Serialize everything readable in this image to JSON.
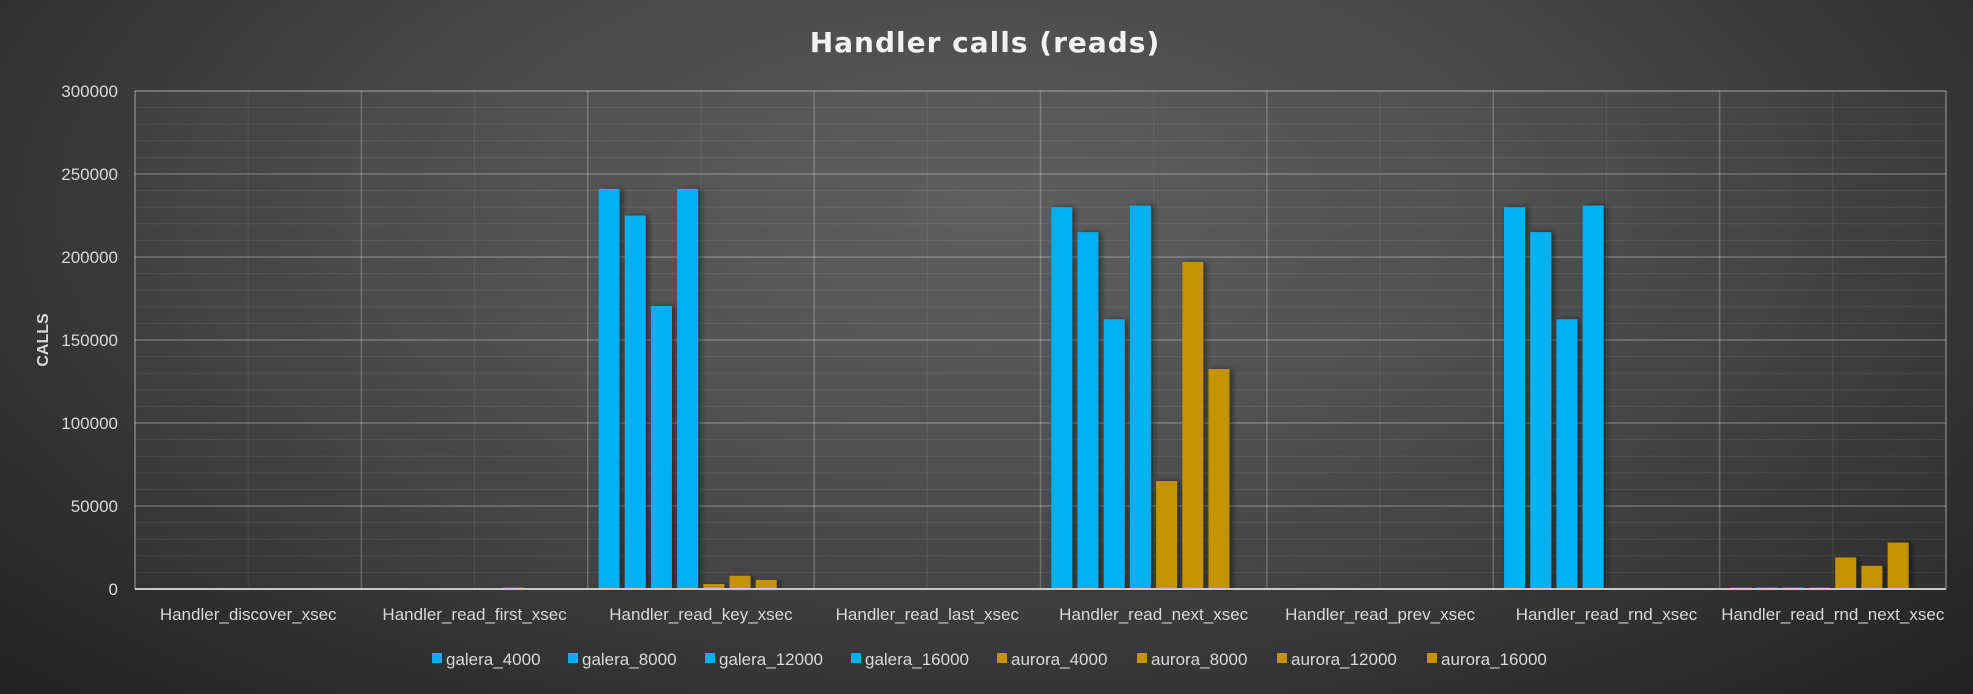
{
  "chart_data": {
    "type": "bar",
    "title": "Handler calls (reads)",
    "xlabel": "",
    "ylabel": "CALLS",
    "ylim": [
      0,
      300000
    ],
    "yticks": [
      0,
      50000,
      100000,
      150000,
      200000,
      250000,
      300000
    ],
    "grid": true,
    "legend_position": "bottom",
    "categories": [
      "Handler_discover_xsec",
      "Handler_read_first_xsec",
      "Handler_read_key_xsec",
      "Handler_read_last_xsec",
      "Handler_read_next_xsec",
      "Handler_read_prev_xsec",
      "Handler_read_rnd_xsec",
      "Handler_read_rnd_next_xsec"
    ],
    "series": [
      {
        "name": "galera_4000",
        "color": "#00b0f0",
        "values": [
          0,
          0,
          241000,
          0,
          230000,
          0,
          230000,
          300
        ]
      },
      {
        "name": "galera_8000",
        "color": "#00b0f0",
        "values": [
          0,
          0,
          225000,
          0,
          215000,
          0,
          215000,
          300
        ]
      },
      {
        "name": "galera_12000",
        "color": "#00b0f0",
        "values": [
          0,
          0,
          170500,
          0,
          162500,
          0,
          162500,
          300
        ]
      },
      {
        "name": "galera_16000",
        "color": "#00b0f0",
        "values": [
          0,
          0,
          241000,
          0,
          231000,
          0,
          231000,
          300
        ]
      },
      {
        "name": "aurora_4000",
        "color": "#c39400",
        "values": [
          0,
          0,
          3000,
          0,
          65000,
          0,
          0,
          19000
        ]
      },
      {
        "name": "aurora_8000",
        "color": "#c39400",
        "values": [
          0,
          300,
          8000,
          0,
          197000,
          0,
          0,
          14000
        ]
      },
      {
        "name": "aurora_12000",
        "color": "#c39400",
        "values": [
          0,
          0,
          5500,
          0,
          132500,
          0,
          0,
          28000
        ]
      },
      {
        "name": "aurora_16000",
        "color": "#c39400",
        "values": [
          0,
          0,
          0,
          0,
          0,
          0,
          0,
          0
        ]
      }
    ]
  }
}
